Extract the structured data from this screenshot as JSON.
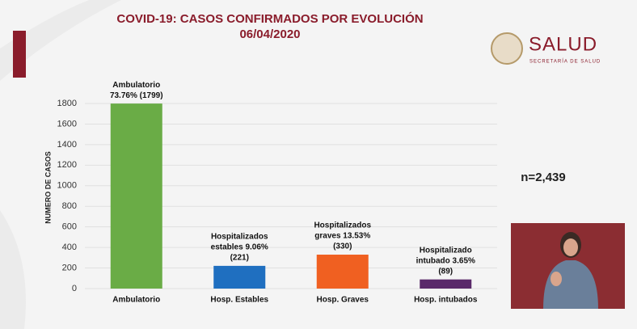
{
  "chart_data": {
    "type": "bar",
    "title": "COVID-19: CASOS CONFIRMADOS POR EVOLUCIÓN",
    "subtitle": "06/04/2020",
    "y_label": "NUMERO DE CASOS",
    "annotation": "n=2,439",
    "categories": [
      "Ambulatorio",
      "Hosp. Estables",
      "Hosp. Graves",
      "Hosp. intubados"
    ],
    "values": [
      1799,
      221,
      330,
      89
    ],
    "value_labels": [
      [
        "Ambulatorio",
        "73.76% (1799)"
      ],
      [
        "Hospitalizados",
        "estables 9.06%",
        "(221)"
      ],
      [
        "Hospitalizados",
        "graves 13.53%",
        "(330)"
      ],
      [
        "Hospitalizado",
        "intubado 3.65%",
        "(89)"
      ]
    ],
    "colors": [
      "#6aac46",
      "#1f6fc0",
      "#f06021",
      "#5a2a6a"
    ],
    "ylim": [
      0,
      1800
    ],
    "yticks": [
      0,
      200,
      400,
      600,
      800,
      1000,
      1200,
      1400,
      1600,
      1800
    ],
    "grid": true
  },
  "logo": {
    "name": "SALUD",
    "subtitle": "SECRETARÍA DE SALUD"
  }
}
